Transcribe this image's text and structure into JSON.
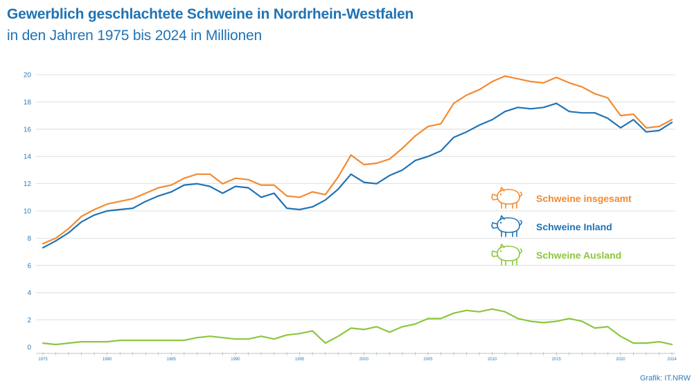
{
  "header": {
    "title": "Gewerblich geschlachtete Schweine in Nordrhein-Westfalen",
    "subtitle": "in den Jahren 1975 bis 2024 in Millionen"
  },
  "source": "Grafik: IT.NRW",
  "colors": {
    "title": "#1f73b4",
    "axis_text": "#2e7cb8",
    "insgesamt": "#f28a30",
    "inland": "#1f73b4",
    "ausland": "#8cc63f"
  },
  "legend": [
    {
      "label": "Schweine insgesamt",
      "icon": "pig-icon",
      "color": "#f28a30"
    },
    {
      "label": "Schweine Inland",
      "icon": "pig-icon",
      "color": "#1f73b4"
    },
    {
      "label": "Schweine Ausland",
      "icon": "pig-icon",
      "color": "#8cc63f"
    }
  ],
  "chart_data": {
    "type": "line",
    "title": "Gewerblich geschlachtete Schweine in Nordrhein-Westfalen",
    "subtitle": "in den Jahren 1975 bis 2024 in Millionen",
    "xlabel": "",
    "ylabel": "",
    "xlim": [
      1975,
      2024
    ],
    "ylim": [
      0,
      20
    ],
    "yticks": [
      0,
      2,
      4,
      6,
      8,
      10,
      12,
      14,
      16,
      18,
      20
    ],
    "xticks": [
      "1975",
      "1980",
      "1985",
      "1990",
      "1995",
      "2000",
      "2005",
      "2010",
      "2015",
      "2020",
      "2024"
    ],
    "grid": "horizontal",
    "legend_position": "right",
    "x": [
      1975,
      1976,
      1977,
      1978,
      1979,
      1980,
      1981,
      1982,
      1983,
      1984,
      1985,
      1986,
      1987,
      1988,
      1989,
      1990,
      1991,
      1992,
      1993,
      1994,
      1995,
      1996,
      1997,
      1998,
      1999,
      2000,
      2001,
      2002,
      2003,
      2004,
      2005,
      2006,
      2007,
      2008,
      2009,
      2010,
      2011,
      2012,
      2013,
      2014,
      2015,
      2016,
      2017,
      2018,
      2019,
      2020,
      2021,
      2022,
      2023,
      2024
    ],
    "series": [
      {
        "name": "Schweine insgesamt",
        "color": "#f28a30",
        "values": [
          7.6,
          8.0,
          8.7,
          9.6,
          10.1,
          10.5,
          10.7,
          10.9,
          11.3,
          11.7,
          11.9,
          12.4,
          12.7,
          12.7,
          12.0,
          12.4,
          12.3,
          11.9,
          11.9,
          11.1,
          11.0,
          11.4,
          11.2,
          12.5,
          14.1,
          13.4,
          13.5,
          13.8,
          14.6,
          15.5,
          16.2,
          16.4,
          17.9,
          18.5,
          18.9,
          19.5,
          19.9,
          19.7,
          19.5,
          19.4,
          19.8,
          19.4,
          19.1,
          18.6,
          18.3,
          17.0,
          17.1,
          16.1,
          16.2,
          16.7
        ]
      },
      {
        "name": "Schweine Inland",
        "color": "#1f73b4",
        "values": [
          7.3,
          7.8,
          8.4,
          9.2,
          9.7,
          10.0,
          10.1,
          10.2,
          10.7,
          11.1,
          11.4,
          11.9,
          12.0,
          11.8,
          11.3,
          11.8,
          11.7,
          11.0,
          11.3,
          10.2,
          10.1,
          10.3,
          10.8,
          11.6,
          12.7,
          12.1,
          12.0,
          12.6,
          13.0,
          13.7,
          14.0,
          14.4,
          15.4,
          15.8,
          16.3,
          16.7,
          17.3,
          17.6,
          17.5,
          17.6,
          17.9,
          17.3,
          17.2,
          17.2,
          16.8,
          16.1,
          16.7,
          15.8,
          15.9,
          16.5
        ]
      },
      {
        "name": "Schweine Ausland",
        "color": "#8cc63f",
        "values": [
          0.3,
          0.2,
          0.3,
          0.4,
          0.4,
          0.4,
          0.5,
          0.5,
          0.5,
          0.5,
          0.5,
          0.5,
          0.7,
          0.8,
          0.7,
          0.6,
          0.6,
          0.8,
          0.6,
          0.9,
          1.0,
          1.2,
          0.3,
          0.8,
          1.4,
          1.3,
          1.5,
          1.1,
          1.5,
          1.7,
          2.1,
          2.1,
          2.5,
          2.7,
          2.6,
          2.8,
          2.6,
          2.1,
          1.9,
          1.8,
          1.9,
          2.1,
          1.9,
          1.4,
          1.5,
          0.8,
          0.3,
          0.3,
          0.4,
          0.2
        ]
      }
    ]
  }
}
